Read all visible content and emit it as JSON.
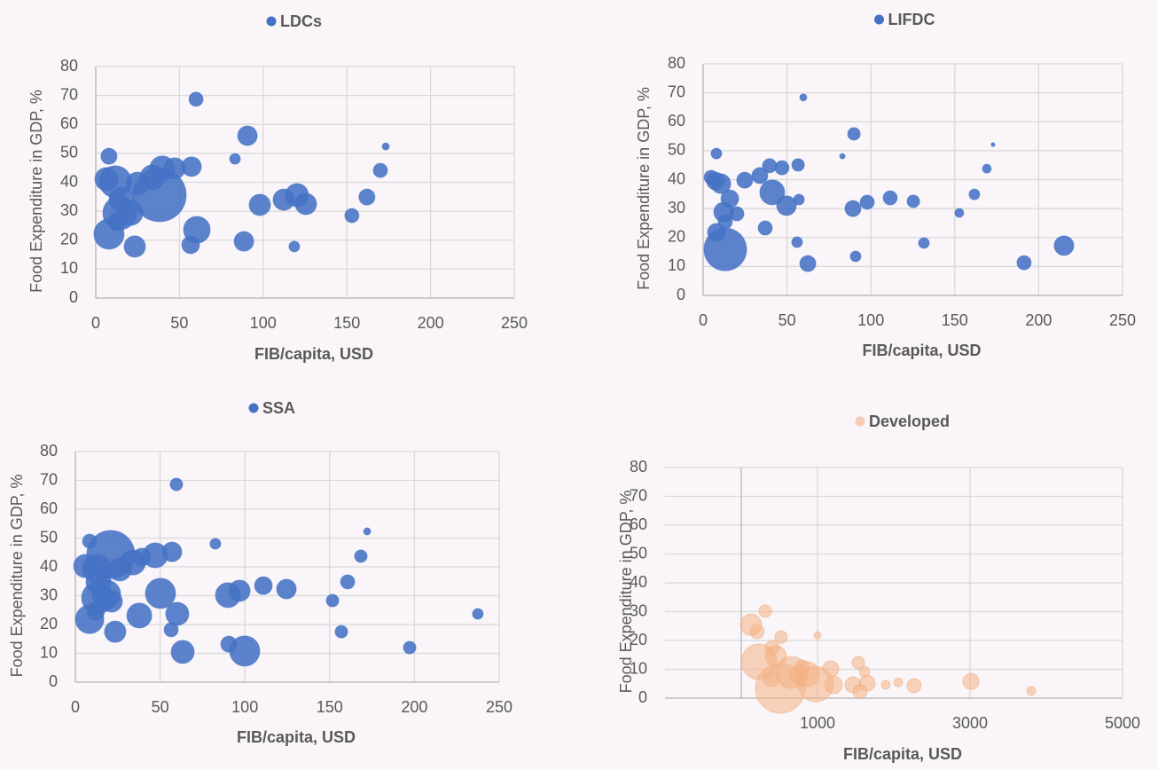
{
  "chart_data": [
    {
      "type": "bubble",
      "x_label": "FIB/capita, USD",
      "y_label": "Food Expenditure in GDP, %",
      "xlim": [
        0,
        250
      ],
      "ylim": [
        0,
        80
      ],
      "xticks": [
        0,
        50,
        100,
        150,
        200,
        250
      ],
      "yticks": [
        0,
        10,
        20,
        30,
        40,
        50,
        60,
        70,
        80
      ],
      "grid": true,
      "series": [
        {
          "name": "LDCs",
          "color": "#4472c4",
          "x": [
            59.9,
            90.6,
            173.2,
            7.9,
            83.2,
            170,
            39.7,
            47.1,
            57.2,
            6.4,
            11.7,
            24.9,
            33.9,
            38.1,
            15.4,
            112.3,
            120.2,
            125.5,
            98,
            162,
            14.3,
            20.7,
            12.7,
            7.9,
            60.4,
            56.7,
            88.5,
            23.3,
            118.6,
            153
          ],
          "values": [
            68.7,
            56.1,
            52.4,
            49,
            48.1,
            44.1,
            44.8,
            44.8,
            45.4,
            41.1,
            40.2,
            39.5,
            41.7,
            35.6,
            34,
            34,
            35.6,
            32.5,
            32.2,
            34.9,
            29.4,
            29.4,
            26.4,
            22.1,
            23.6,
            18.4,
            19.6,
            17.8,
            17.8,
            28.5
          ],
          "sizes": [
            28,
            54,
            7,
            36,
            16,
            28,
            87,
            64,
            54,
            75,
            144,
            75,
            87,
            400,
            87,
            64,
            75,
            64,
            64,
            36,
            160,
            87,
            44,
            128,
            100,
            44,
            54,
            64,
            16,
            28
          ]
        }
      ]
    },
    {
      "type": "bubble",
      "x_label": "FIB/capita, USD",
      "y_label": "Food Expenditure in GDP, %",
      "xlim": [
        0,
        250
      ],
      "ylim": [
        0,
        80
      ],
      "xticks": [
        0,
        50,
        100,
        150,
        200,
        250
      ],
      "yticks": [
        0,
        10,
        20,
        30,
        40,
        50,
        60,
        70,
        80
      ],
      "grid": true,
      "series": [
        {
          "name": "LIFDC",
          "color": "#4472c4",
          "x": [
            59.7,
            89.9,
            172.8,
            7.9,
            83,
            169.1,
            39.6,
            47,
            56.6,
            4.8,
            7.4,
            10.6,
            24.8,
            33.8,
            41.2,
            15.9,
            111.5,
            125.3,
            97.8,
            161.7,
            57.1,
            49.7,
            12.2,
            20.1,
            89.3,
            152.7,
            13.2,
            7.9,
            37,
            56,
            131.6,
            215.1,
            90.9,
            191.3,
            62.4,
            13.2
          ],
          "values": [
            68.4,
            55.8,
            52.1,
            49,
            48.1,
            43.8,
            44.8,
            44.1,
            45.1,
            40.8,
            39.5,
            38.6,
            39.8,
            41.4,
            35.6,
            33.4,
            33.7,
            32.5,
            32.2,
            34.9,
            33.1,
            31,
            28.8,
            28.2,
            30,
            28.5,
            25.4,
            21.8,
            23.3,
            18.4,
            18.1,
            17.2,
            13.5,
            11.3,
            11,
            15.9
          ],
          "sizes": [
            7,
            22,
            2,
            16,
            4,
            11,
            28,
            28,
            22,
            28,
            44,
            54,
            36,
            36,
            87,
            44,
            28,
            22,
            28,
            16,
            16,
            54,
            54,
            28,
            36,
            11,
            28,
            44,
            28,
            16,
            16,
            54,
            16,
            28,
            36,
            256
          ]
        }
      ]
    },
    {
      "type": "bubble",
      "x_label": "FIB/capita, USD",
      "y_label": "Food Expenditure in GDP, %",
      "xlim": [
        0,
        250
      ],
      "ylim": [
        0,
        80
      ],
      "xticks": [
        0,
        50,
        100,
        150,
        200,
        250
      ],
      "yticks": [
        0,
        10,
        20,
        30,
        40,
        50,
        60,
        70,
        80
      ],
      "grid": true,
      "series": [
        {
          "name": "SSA",
          "color": "#4472c4",
          "x": [
            59.6,
            172.1,
            8.4,
            82.6,
            168.4,
            20.9,
            47.1,
            57,
            5.8,
            12.6,
            26.2,
            34,
            39.2,
            13.6,
            110.9,
            124.5,
            96.8,
            160.6,
            50.2,
            90,
            13.1,
            21.4,
            151.7,
            12,
            237.4,
            37.7,
            60.1,
            8.4,
            56.5,
            156.9,
            23.5,
            90.5,
            197.2,
            63.3,
            99.9,
            18.3
          ],
          "values": [
            68.6,
            52.3,
            48.9,
            48,
            43.7,
            44.3,
            44,
            45.2,
            40.3,
            39.4,
            39.1,
            41.5,
            43.4,
            34.8,
            33.5,
            32.3,
            31.7,
            34.8,
            30.8,
            30.2,
            29.2,
            28,
            28.3,
            24.6,
            23.7,
            23.1,
            23.7,
            21.8,
            18.2,
            17.5,
            17.5,
            13.2,
            12,
            10.5,
            10.8,
            30.5
          ],
          "sizes": [
            22,
            7,
            28,
            16,
            22,
            324,
            87,
            54,
            75,
            114,
            75,
            87,
            44,
            87,
            44,
            54,
            64,
            28,
            128,
            87,
            144,
            64,
            22,
            44,
            16,
            87,
            75,
            114,
            28,
            22,
            64,
            36,
            22,
            75,
            128,
            114
          ]
        }
      ]
    },
    {
      "type": "bubble",
      "x_label": "FIB/capita, USD",
      "y_label": "Food Expenditure in GDP, %",
      "xlim": [
        -1000,
        5000
      ],
      "ylim": [
        0,
        80
      ],
      "xticks": [
        1000,
        3000,
        5000
      ],
      "yticks": [
        0,
        10,
        20,
        30,
        40,
        50,
        60,
        70,
        80
      ],
      "grid": true,
      "series": [
        {
          "name": "Developed",
          "color": "#f4b183",
          "x": [
            314,
            128,
            209,
            523,
            1000,
            233,
            453,
            407,
            663,
            512,
            977,
            860,
            1174,
            1535,
            1616,
            1209,
            1465,
            1651,
            1558,
            1895,
            2058,
            2267,
            3012,
            3802,
            744,
            395,
            802
          ],
          "values": [
            30.2,
            25.5,
            23.1,
            21.2,
            21.8,
            12.6,
            14.5,
            17.5,
            8.9,
            3.4,
            4.9,
            8.3,
            10.2,
            12.3,
            9.2,
            4.6,
            4.6,
            5.2,
            2.2,
            4.6,
            5.5,
            4.3,
            5.8,
            2.5,
            8.3,
            6.8,
            10.8
          ],
          "sizes": [
            22,
            64,
            28,
            22,
            7,
            178,
            64,
            28,
            144,
            348,
            178,
            87,
            36,
            22,
            16,
            44,
            36,
            36,
            28,
            11,
            11,
            28,
            36,
            11,
            44,
            36,
            28
          ]
        }
      ]
    }
  ]
}
